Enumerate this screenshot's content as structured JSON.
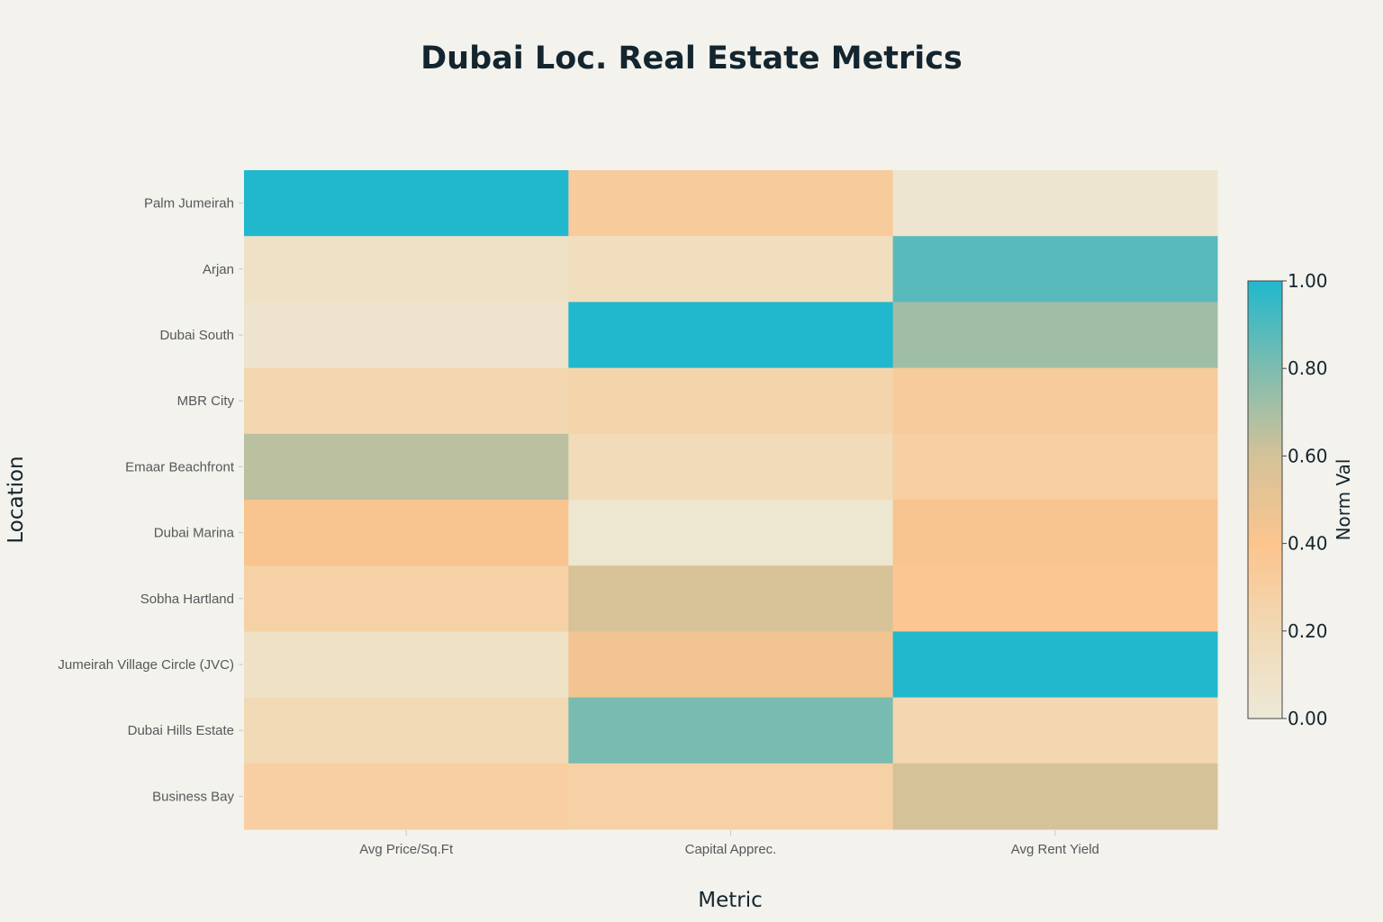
{
  "chart_data": {
    "type": "heatmap",
    "title": "Dubai Loc. Real Estate Metrics",
    "xlabel": "Metric",
    "ylabel": "Location",
    "x_categories": [
      "Avg Price/Sq.Ft",
      "Capital Apprec.",
      "Avg Rent Yield"
    ],
    "y_categories": [
      "Palm Jumeirah",
      "Arjan",
      "Dubai South",
      "MBR City",
      "Emaar Beachfront",
      "Dubai Marina",
      "Sobha Hartland",
      "Jumeirah Village Circle (JVC)",
      "Dubai Hills Estate",
      "Business Bay"
    ],
    "values": [
      [
        1.0,
        0.33,
        0.05
      ],
      [
        0.1,
        0.14,
        0.88
      ],
      [
        0.06,
        1.0,
        0.72
      ],
      [
        0.22,
        0.25,
        0.33
      ],
      [
        0.66,
        0.18,
        0.3
      ],
      [
        0.42,
        0.04,
        0.42
      ],
      [
        0.28,
        0.58,
        0.38
      ],
      [
        0.1,
        0.45,
        1.0
      ],
      [
        0.2,
        0.81,
        0.22
      ],
      [
        0.3,
        0.28,
        0.6
      ]
    ],
    "colorbar": {
      "title": "Norm Val",
      "range": [
        0,
        1
      ],
      "ticks": [
        "0.00",
        "0.20",
        "0.40",
        "0.60",
        "0.80",
        "1.00"
      ]
    },
    "colorscale": [
      [
        0.0,
        "#ece9d7"
      ],
      [
        0.2,
        "#f1d9b5"
      ],
      [
        0.4,
        "#fcc48e"
      ],
      [
        0.6,
        "#d4c299"
      ],
      [
        0.8,
        "#7dbcaf"
      ],
      [
        1.0,
        "#21b8cd"
      ]
    ],
    "grid": false
  }
}
